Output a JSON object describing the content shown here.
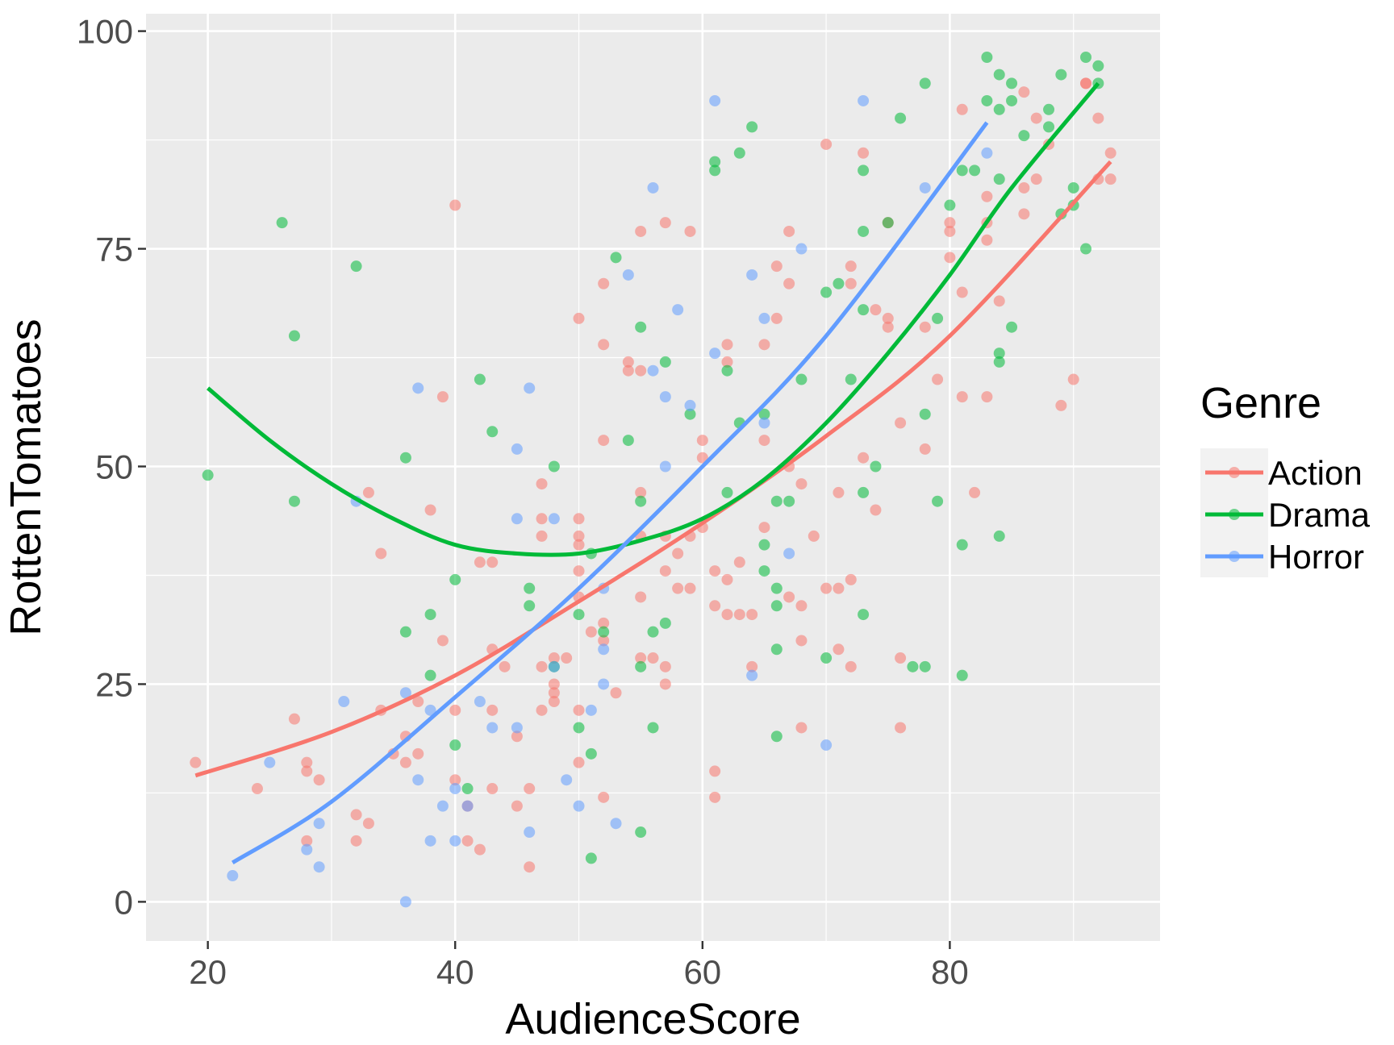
{
  "chart_data": {
    "type": "scatter",
    "xlabel": "AudienceScore",
    "ylabel": "RottenTomatoes",
    "xlim": [
      15,
      97
    ],
    "ylim": [
      -4.5,
      102
    ],
    "xticks": [
      20,
      40,
      60,
      80
    ],
    "yticks": [
      0,
      25,
      50,
      75,
      100
    ],
    "grid": true,
    "legend": {
      "title": "Genre",
      "position": "right"
    },
    "series": [
      {
        "name": "Action",
        "color": "#F8766D",
        "fit": "quadratic",
        "fit_curve": {
          "x": [
            19,
            30,
            40,
            50,
            60,
            70,
            80,
            93
          ],
          "y": [
            14.5,
            19.5,
            26,
            34.5,
            43.5,
            53.5,
            65,
            85
          ]
        },
        "points": [
          [
            19,
            16
          ],
          [
            24,
            13
          ],
          [
            27,
            21
          ],
          [
            28,
            16
          ],
          [
            28,
            15
          ],
          [
            29,
            14
          ],
          [
            28,
            7
          ],
          [
            32,
            10
          ],
          [
            32,
            7
          ],
          [
            33,
            9
          ],
          [
            33,
            47
          ],
          [
            34,
            40
          ],
          [
            34,
            22
          ],
          [
            35,
            17
          ],
          [
            36,
            16
          ],
          [
            36,
            19
          ],
          [
            37,
            23
          ],
          [
            37,
            17
          ],
          [
            38,
            45
          ],
          [
            39,
            58
          ],
          [
            39,
            30
          ],
          [
            40,
            80
          ],
          [
            40,
            22
          ],
          [
            40,
            14
          ],
          [
            41,
            11
          ],
          [
            41,
            7
          ],
          [
            42,
            39
          ],
          [
            42,
            6
          ],
          [
            43,
            39
          ],
          [
            43,
            29
          ],
          [
            43,
            22
          ],
          [
            43,
            13
          ],
          [
            44,
            27
          ],
          [
            45,
            19
          ],
          [
            45,
            11
          ],
          [
            46,
            13
          ],
          [
            46,
            4
          ],
          [
            47,
            48
          ],
          [
            47,
            44
          ],
          [
            47,
            42
          ],
          [
            47,
            27
          ],
          [
            47,
            22
          ],
          [
            48,
            28
          ],
          [
            48,
            25
          ],
          [
            48,
            24
          ],
          [
            48,
            23
          ],
          [
            49,
            28
          ],
          [
            50,
            67
          ],
          [
            50,
            44
          ],
          [
            50,
            42
          ],
          [
            50,
            41
          ],
          [
            50,
            38
          ],
          [
            50,
            35
          ],
          [
            50,
            22
          ],
          [
            50,
            16
          ],
          [
            51,
            31
          ],
          [
            52,
            71
          ],
          [
            52,
            64
          ],
          [
            52,
            53
          ],
          [
            52,
            32
          ],
          [
            52,
            30
          ],
          [
            52,
            12
          ],
          [
            53,
            24
          ],
          [
            54,
            62
          ],
          [
            54,
            61
          ],
          [
            55,
            77
          ],
          [
            55,
            61
          ],
          [
            55,
            47
          ],
          [
            55,
            42
          ],
          [
            55,
            35
          ],
          [
            55,
            28
          ],
          [
            56,
            28
          ],
          [
            57,
            78
          ],
          [
            57,
            42
          ],
          [
            57,
            38
          ],
          [
            57,
            27
          ],
          [
            57,
            25
          ],
          [
            58,
            40
          ],
          [
            58,
            36
          ],
          [
            59,
            77
          ],
          [
            59,
            42
          ],
          [
            59,
            36
          ],
          [
            60,
            53
          ],
          [
            60,
            51
          ],
          [
            60,
            43
          ],
          [
            61,
            38
          ],
          [
            61,
            34
          ],
          [
            61,
            15
          ],
          [
            61,
            12
          ],
          [
            62,
            64
          ],
          [
            62,
            62
          ],
          [
            62,
            37
          ],
          [
            62,
            33
          ],
          [
            63,
            39
          ],
          [
            63,
            33
          ],
          [
            64,
            33
          ],
          [
            64,
            27
          ],
          [
            65,
            64
          ],
          [
            65,
            53
          ],
          [
            65,
            43
          ],
          [
            66,
            73
          ],
          [
            66,
            67
          ],
          [
            67,
            77
          ],
          [
            67,
            71
          ],
          [
            67,
            50
          ],
          [
            67,
            35
          ],
          [
            68,
            48
          ],
          [
            68,
            34
          ],
          [
            68,
            30
          ],
          [
            68,
            20
          ],
          [
            69,
            42
          ],
          [
            70,
            87
          ],
          [
            70,
            36
          ],
          [
            71,
            47
          ],
          [
            71,
            36
          ],
          [
            71,
            29
          ],
          [
            72,
            73
          ],
          [
            72,
            71
          ],
          [
            72,
            37
          ],
          [
            72,
            27
          ],
          [
            73,
            86
          ],
          [
            73,
            51
          ],
          [
            74,
            68
          ],
          [
            74,
            45
          ],
          [
            75,
            78
          ],
          [
            75,
            67
          ],
          [
            75,
            66
          ],
          [
            76,
            55
          ],
          [
            76,
            28
          ],
          [
            76,
            20
          ],
          [
            78,
            66
          ],
          [
            78,
            52
          ],
          [
            79,
            60
          ],
          [
            80,
            78
          ],
          [
            80,
            77
          ],
          [
            80,
            74
          ],
          [
            81,
            91
          ],
          [
            81,
            70
          ],
          [
            81,
            58
          ],
          [
            82,
            47
          ],
          [
            83,
            81
          ],
          [
            83,
            78
          ],
          [
            83,
            76
          ],
          [
            83,
            58
          ],
          [
            84,
            69
          ],
          [
            86,
            93
          ],
          [
            86,
            82
          ],
          [
            86,
            79
          ],
          [
            87,
            90
          ],
          [
            87,
            83
          ],
          [
            88,
            87
          ],
          [
            89,
            57
          ],
          [
            90,
            60
          ],
          [
            91,
            94
          ],
          [
            91,
            94
          ],
          [
            92,
            90
          ],
          [
            92,
            83
          ],
          [
            93,
            86
          ],
          [
            93,
            83
          ]
        ]
      },
      {
        "name": "Drama",
        "color": "#00BA38",
        "fit": "quadratic",
        "fit_curve": {
          "x": [
            20,
            25,
            30,
            35,
            40,
            45,
            50,
            55,
            60,
            65,
            70,
            75,
            80,
            85,
            92
          ],
          "y": [
            59,
            53,
            48,
            44,
            41,
            40,
            40,
            41.5,
            44,
            48.5,
            55,
            63,
            72,
            82,
            94
          ]
        },
        "points": [
          [
            20,
            49
          ],
          [
            26,
            78
          ],
          [
            27,
            65
          ],
          [
            27,
            46
          ],
          [
            32,
            73
          ],
          [
            36,
            51
          ],
          [
            36,
            31
          ],
          [
            38,
            33
          ],
          [
            38,
            26
          ],
          [
            40,
            37
          ],
          [
            40,
            18
          ],
          [
            41,
            13
          ],
          [
            42,
            60
          ],
          [
            43,
            54
          ],
          [
            46,
            36
          ],
          [
            46,
            34
          ],
          [
            48,
            50
          ],
          [
            48,
            27
          ],
          [
            50,
            33
          ],
          [
            50,
            20
          ],
          [
            51,
            40
          ],
          [
            51,
            17
          ],
          [
            51,
            5
          ],
          [
            52,
            31
          ],
          [
            53,
            74
          ],
          [
            54,
            53
          ],
          [
            55,
            66
          ],
          [
            55,
            46
          ],
          [
            55,
            27
          ],
          [
            55,
            8
          ],
          [
            56,
            31
          ],
          [
            56,
            20
          ],
          [
            57,
            62
          ],
          [
            57,
            32
          ],
          [
            59,
            56
          ],
          [
            61,
            85
          ],
          [
            61,
            84
          ],
          [
            62,
            61
          ],
          [
            62,
            47
          ],
          [
            63,
            86
          ],
          [
            63,
            55
          ],
          [
            64,
            89
          ],
          [
            65,
            56
          ],
          [
            65,
            41
          ],
          [
            65,
            38
          ],
          [
            66,
            46
          ],
          [
            66,
            36
          ],
          [
            66,
            34
          ],
          [
            66,
            29
          ],
          [
            66,
            19
          ],
          [
            67,
            46
          ],
          [
            68,
            60
          ],
          [
            70,
            70
          ],
          [
            70,
            28
          ],
          [
            71,
            71
          ],
          [
            72,
            60
          ],
          [
            73,
            84
          ],
          [
            73,
            77
          ],
          [
            73,
            68
          ],
          [
            73,
            47
          ],
          [
            73,
            33
          ],
          [
            74,
            50
          ],
          [
            75,
            78
          ],
          [
            76,
            90
          ],
          [
            77,
            27
          ],
          [
            78,
            94
          ],
          [
            78,
            56
          ],
          [
            78,
            27
          ],
          [
            79,
            67
          ],
          [
            79,
            46
          ],
          [
            80,
            80
          ],
          [
            81,
            84
          ],
          [
            81,
            41
          ],
          [
            81,
            26
          ],
          [
            82,
            84
          ],
          [
            83,
            97
          ],
          [
            83,
            92
          ],
          [
            84,
            95
          ],
          [
            84,
            91
          ],
          [
            84,
            83
          ],
          [
            84,
            63
          ],
          [
            84,
            62
          ],
          [
            84,
            42
          ],
          [
            85,
            94
          ],
          [
            85,
            92
          ],
          [
            85,
            66
          ],
          [
            86,
            88
          ],
          [
            88,
            91
          ],
          [
            88,
            89
          ],
          [
            89,
            95
          ],
          [
            89,
            79
          ],
          [
            90,
            82
          ],
          [
            90,
            80
          ],
          [
            91,
            97
          ],
          [
            91,
            75
          ],
          [
            92,
            96
          ],
          [
            92,
            94
          ]
        ]
      },
      {
        "name": "Horror",
        "color": "#619CFF",
        "fit": "quadratic",
        "fit_curve": {
          "x": [
            22,
            30,
            40,
            50,
            60,
            70,
            83
          ],
          "y": [
            4.5,
            11.5,
            23.5,
            36,
            50,
            65,
            89.5
          ]
        },
        "points": [
          [
            22,
            3
          ],
          [
            25,
            16
          ],
          [
            28,
            6
          ],
          [
            29,
            9
          ],
          [
            29,
            4
          ],
          [
            31,
            23
          ],
          [
            32,
            46
          ],
          [
            36,
            24
          ],
          [
            36,
            0
          ],
          [
            37,
            59
          ],
          [
            37,
            14
          ],
          [
            38,
            22
          ],
          [
            38,
            7
          ],
          [
            39,
            11
          ],
          [
            40,
            13
          ],
          [
            40,
            7
          ],
          [
            41,
            11
          ],
          [
            42,
            23
          ],
          [
            43,
            20
          ],
          [
            45,
            52
          ],
          [
            45,
            44
          ],
          [
            45,
            20
          ],
          [
            46,
            59
          ],
          [
            46,
            8
          ],
          [
            48,
            44
          ],
          [
            48,
            27
          ],
          [
            49,
            14
          ],
          [
            50,
            11
          ],
          [
            51,
            22
          ],
          [
            52,
            36
          ],
          [
            52,
            29
          ],
          [
            52,
            25
          ],
          [
            53,
            9
          ],
          [
            54,
            72
          ],
          [
            56,
            82
          ],
          [
            56,
            61
          ],
          [
            57,
            58
          ],
          [
            57,
            50
          ],
          [
            58,
            68
          ],
          [
            59,
            57
          ],
          [
            61,
            92
          ],
          [
            61,
            63
          ],
          [
            64,
            72
          ],
          [
            64,
            26
          ],
          [
            65,
            67
          ],
          [
            65,
            55
          ],
          [
            67,
            40
          ],
          [
            68,
            75
          ],
          [
            70,
            18
          ],
          [
            73,
            92
          ],
          [
            78,
            82
          ],
          [
            83,
            86
          ]
        ]
      }
    ]
  }
}
